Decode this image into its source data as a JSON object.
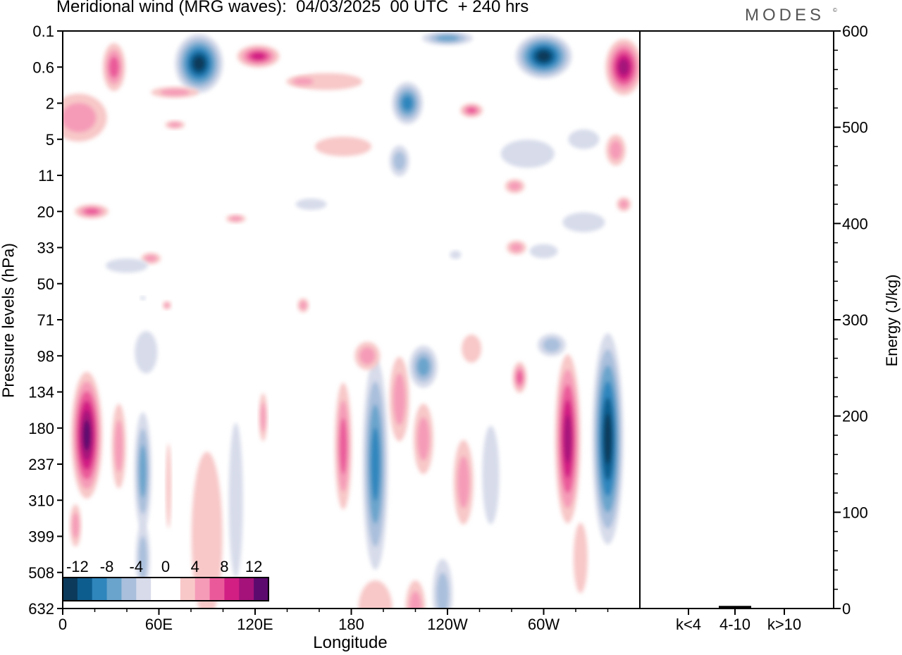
{
  "title": "Meridional wind (MRG waves):  04/03/2025  00 UTC  + 240 hrs",
  "brand": "MODES",
  "brand_mark": "©",
  "chart_data": {
    "type": "heatmap",
    "xlabel": "Longitude",
    "ylabel": "Pressure levels (hPa)",
    "x_ticks": [
      "0",
      "60E",
      "120E",
      "180",
      "120W",
      "60W"
    ],
    "y_ticks": [
      "0.1",
      "0.6",
      "2",
      "5",
      "11",
      "20",
      "33",
      "50",
      "71",
      "98",
      "134",
      "180",
      "237",
      "310",
      "399",
      "508",
      "632"
    ],
    "colorbar": {
      "labels": [
        "-12",
        "-8",
        "-4",
        "0",
        "4",
        "8",
        "12"
      ],
      "colors": [
        "#0b3a5a",
        "#0e5d8f",
        "#2f86bd",
        "#6aa4cc",
        "#a9bfdc",
        "#d7dbea",
        "#ffffff",
        "#ffffff",
        "#f8c8c8",
        "#f59bb8",
        "#ea5a9a",
        "#d21f84",
        "#a4127a",
        "#5c0a6e"
      ]
    },
    "features": [
      {
        "lon": 15,
        "level": "180",
        "value": 12
      },
      {
        "lon": 195,
        "level": "180",
        "value": -8
      },
      {
        "lon": 178,
        "level": "180",
        "value": 6
      },
      {
        "lon": 318,
        "level": "180",
        "value": 10
      },
      {
        "lon": 340,
        "level": "180",
        "value": -12
      },
      {
        "lon": 50,
        "level": "237",
        "value": -6
      },
      {
        "lon": 85,
        "level": "0.6",
        "value": -12
      },
      {
        "lon": 300,
        "level": "0.6",
        "value": -12
      },
      {
        "lon": 350,
        "level": "0.6",
        "value": 10
      },
      {
        "lon": 215,
        "level": "2",
        "value": -8
      },
      {
        "lon": 225,
        "level": "98",
        "value": -6
      }
    ],
    "energy_panel": {
      "ylabel": "Energy (J/kg)",
      "categories": [
        "k<4",
        "4-10",
        "k>10"
      ],
      "values": [
        0,
        2,
        0
      ],
      "ylim": [
        0,
        600
      ],
      "y_ticks": [
        "0",
        "100",
        "200",
        "300",
        "400",
        "500",
        "600"
      ]
    }
  }
}
